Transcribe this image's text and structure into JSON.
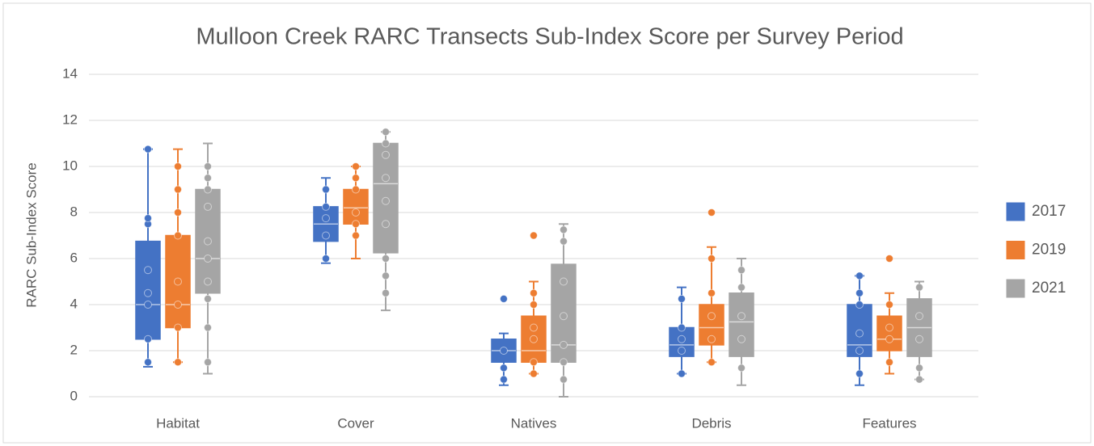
{
  "chart_data": {
    "type": "box",
    "title": "Mulloon Creek RARC Transects Sub-Index Score per Survey Period",
    "y_label": "RARC Sub-Index Score",
    "categories": [
      "Habitat",
      "Cover",
      "Natives",
      "Debris",
      "Features"
    ],
    "ylim": [
      0,
      14
    ],
    "yticks": [
      0,
      2,
      4,
      6,
      8,
      10,
      12,
      14
    ],
    "grid": true,
    "legend": "right",
    "series": [
      {
        "name": "2017",
        "color": "#4472c4",
        "min": [
          1.3,
          5.8,
          0.5,
          1,
          0.5
        ],
        "q1": [
          2.5,
          6.75,
          1.5,
          1.75,
          1.75
        ],
        "median": [
          4,
          7.5,
          2,
          2.25,
          2.25
        ],
        "q3": [
          6.75,
          8.25,
          2.5,
          3,
          4
        ],
        "max": [
          10.75,
          9.5,
          2.75,
          4.75,
          5.25
        ],
        "points": [
          [
            1.5,
            2.5,
            4,
            4.5,
            5.5,
            7.5,
            7.75,
            10.75
          ],
          [
            6,
            7,
            7.75,
            8.25,
            9
          ],
          [
            0.75,
            1.25,
            2,
            4.25
          ],
          [
            1,
            2,
            2.5,
            3,
            4.25
          ],
          [
            1,
            2,
            2.75,
            4,
            4.5,
            5.25
          ]
        ]
      },
      {
        "name": "2019",
        "color": "#ed7d31",
        "min": [
          1.5,
          6,
          1,
          1.5,
          1
        ],
        "q1": [
          3,
          7.5,
          1.5,
          2.25,
          2
        ],
        "median": [
          4,
          8.2,
          2,
          3,
          2.5
        ],
        "q3": [
          7,
          9,
          3.5,
          4,
          3.5
        ],
        "max": [
          10.75,
          10,
          5,
          6.5,
          4.5
        ],
        "points": [
          [
            1.5,
            3,
            4,
            5,
            7,
            8,
            9,
            10
          ],
          [
            7,
            7.5,
            8,
            9,
            9.5,
            10
          ],
          [
            1,
            1.5,
            2.5,
            3,
            4,
            4.5,
            7
          ],
          [
            1.5,
            2.5,
            3.5,
            4.5,
            6,
            8
          ],
          [
            1.5,
            2.5,
            3,
            4,
            6
          ]
        ]
      },
      {
        "name": "2021",
        "color": "#a5a5a5",
        "min": [
          1,
          3.75,
          0,
          0.5,
          0.75
        ],
        "q1": [
          4.5,
          6.25,
          1.5,
          1.75,
          1.75
        ],
        "median": [
          6,
          9.25,
          2.25,
          3.25,
          3
        ],
        "q3": [
          9,
          11,
          5.75,
          4.5,
          4.25
        ],
        "max": [
          11,
          11.5,
          7.5,
          6,
          5
        ],
        "points": [
          [
            1.5,
            3,
            4.25,
            5,
            6,
            6.75,
            8.25,
            9,
            9.5,
            10
          ],
          [
            4.5,
            5.25,
            6,
            7.5,
            8.5,
            9.5,
            10.5,
            11,
            11.5
          ],
          [
            0.75,
            1.5,
            2.25,
            3.5,
            5,
            6.75,
            7.25
          ],
          [
            1.25,
            2.5,
            3.5,
            4.75,
            5.5
          ],
          [
            0.75,
            1.25,
            2.5,
            3.5,
            4.75
          ]
        ]
      }
    ]
  }
}
